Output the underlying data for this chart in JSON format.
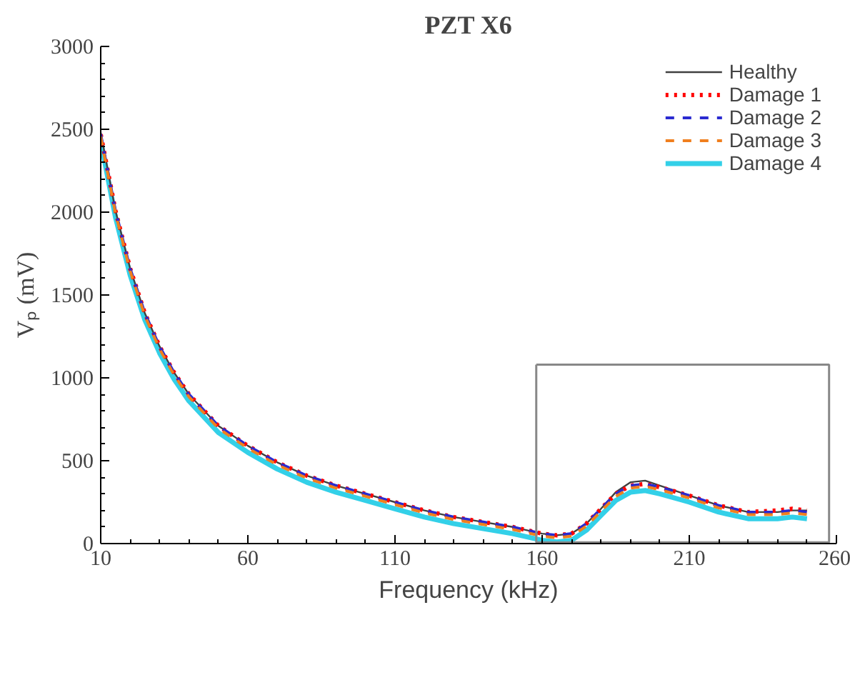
{
  "chart_data": {
    "type": "line",
    "title": "PZT X6",
    "xlabel": "Frequency (kHz)",
    "ylabel": "Vₚ (mV)",
    "x": [
      10,
      15,
      20,
      25,
      30,
      35,
      40,
      50,
      60,
      70,
      80,
      90,
      100,
      110,
      120,
      130,
      140,
      150,
      160,
      165,
      170,
      175,
      180,
      185,
      190,
      195,
      200,
      210,
      220,
      230,
      240,
      245,
      250
    ],
    "series": [
      {
        "name": "Healthy",
        "color": "#404040",
        "line_style": "solid",
        "values": [
          2480,
          2010,
          1660,
          1390,
          1190,
          1030,
          900,
          710,
          590,
          490,
          410,
          350,
          300,
          250,
          200,
          160,
          130,
          100,
          60,
          50,
          60,
          120,
          210,
          310,
          370,
          380,
          350,
          290,
          230,
          190,
          190,
          200,
          200
        ]
      },
      {
        "name": "Damage 1",
        "color": "#ff0000",
        "line_style": "dotted",
        "values": [
          2470,
          2010,
          1660,
          1390,
          1190,
          1030,
          900,
          710,
          590,
          490,
          410,
          350,
          300,
          250,
          200,
          160,
          130,
          100,
          60,
          50,
          60,
          120,
          210,
          300,
          350,
          360,
          340,
          290,
          230,
          190,
          200,
          210,
          200
        ]
      },
      {
        "name": "Damage 2",
        "color": "#2a2ad0",
        "line_style": "dashed",
        "values": [
          2470,
          2010,
          1660,
          1390,
          1190,
          1030,
          900,
          710,
          590,
          490,
          410,
          350,
          300,
          250,
          200,
          160,
          130,
          100,
          60,
          50,
          60,
          120,
          210,
          300,
          350,
          360,
          340,
          290,
          230,
          190,
          190,
          200,
          190
        ]
      },
      {
        "name": "Damage 3",
        "color": "#f07f1e",
        "line_style": "dashed",
        "values": [
          2455,
          1995,
          1645,
          1375,
          1175,
          1015,
          885,
          695,
          575,
          475,
          395,
          335,
          285,
          235,
          185,
          145,
          115,
          85,
          45,
          35,
          45,
          105,
          195,
          285,
          335,
          345,
          325,
          275,
          215,
          175,
          175,
          185,
          175
        ]
      },
      {
        "name": "Damage 4",
        "color": "#33d0e8",
        "line_style": "solid",
        "values": [
          2430,
          1970,
          1620,
          1350,
          1150,
          990,
          860,
          670,
          550,
          450,
          370,
          310,
          260,
          210,
          160,
          120,
          90,
          60,
          20,
          10,
          20,
          80,
          170,
          260,
          310,
          320,
          300,
          250,
          190,
          150,
          150,
          160,
          150
        ]
      }
    ],
    "xlim": [
      10,
      260
    ],
    "xticks": [
      10,
      60,
      110,
      160,
      210,
      260
    ],
    "ylim": [
      0,
      3000
    ],
    "yticks": [
      0,
      500,
      1000,
      1500,
      2000,
      2500,
      3000
    ],
    "grid": false,
    "legend": "top right",
    "marker": "none"
  }
}
